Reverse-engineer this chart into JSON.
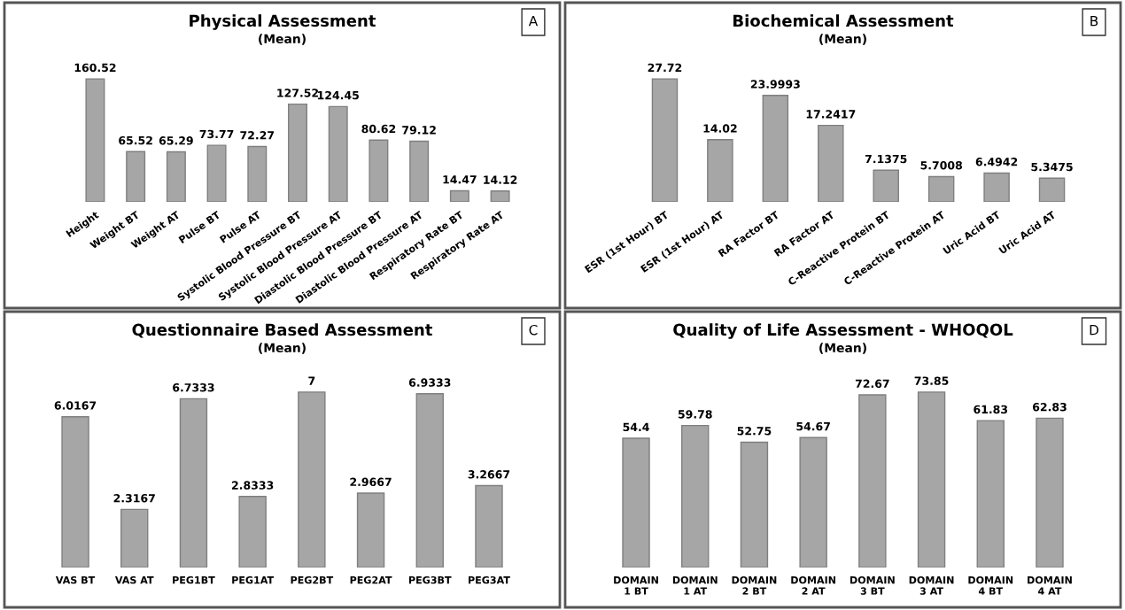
{
  "chart_data": [
    {
      "type": "bar",
      "title": "Physical Assessment",
      "subtitle": "(Mean)",
      "annotations": [
        "A"
      ],
      "color": "#a6a6a6",
      "data_labels": true,
      "tick_labels": "x",
      "grid": false,
      "legend": false,
      "categories": [
        "Height",
        "Weight BT",
        "Weight AT",
        "Pulse BT",
        "Pulse AT",
        "Systolic Blood Pressure BT",
        "Systolic Blood Pressure AT",
        "Diastolic Blood Pressure BT",
        "Diastolic Blood Pressure AT",
        "Respiratory Rate BT",
        "Respiratory Rate AT"
      ],
      "values": [
        160.52,
        65.52,
        65.29,
        73.77,
        72.27,
        127.52,
        124.45,
        80.62,
        79.12,
        14.47,
        14.12
      ]
    },
    {
      "type": "bar",
      "title": "Biochemical Assessment",
      "subtitle": "(Mean)",
      "annotations": [
        "B"
      ],
      "color": "#a6a6a6",
      "data_labels": true,
      "tick_labels": "x",
      "grid": false,
      "legend": false,
      "categories": [
        "ESR (1st Hour) BT",
        "ESR (1st Hour) AT",
        "RA Factor BT",
        "RA Factor AT",
        "C-Reactive Protein BT",
        "C-Reactive Protein AT",
        "Uric Acid BT",
        "Uric Acid AT"
      ],
      "values": [
        27.72,
        14.02,
        23.9993,
        17.2417,
        7.1375,
        5.7008,
        6.4942,
        5.3475
      ]
    },
    {
      "type": "bar",
      "title": "Questionnaire Based Assessment",
      "subtitle": "(Mean)",
      "annotations": [
        "C"
      ],
      "color": "#a6a6a6",
      "data_labels": true,
      "tick_labels": "x",
      "grid": false,
      "legend": false,
      "categories": [
        "VAS BT",
        "VAS AT",
        "PEG1BT",
        "PEG1AT",
        "PEG2BT",
        "PEG2AT",
        "PEG3BT",
        "PEG3AT"
      ],
      "values": [
        6.0167,
        2.3167,
        6.7333,
        2.8333,
        7,
        2.9667,
        6.9333,
        3.2667
      ]
    },
    {
      "type": "bar",
      "title": "Quality of Life Assessment - WHOQOL",
      "subtitle": "(Mean)",
      "annotations": [
        "D"
      ],
      "color": "#a6a6a6",
      "data_labels": true,
      "tick_labels": "x",
      "grid": false,
      "legend": false,
      "categories": [
        "DOMAIN\n1 BT",
        "DOMAIN\n1 AT",
        "DOMAIN\n2 BT",
        "DOMAIN\n2 AT",
        "DOMAIN\n3 BT",
        "DOMAIN\n3 AT",
        "DOMAIN\n4 BT",
        "DOMAIN\n4 AT"
      ],
      "values": [
        54.4,
        59.78,
        52.75,
        54.67,
        72.67,
        73.85,
        61.83,
        62.83
      ]
    }
  ]
}
